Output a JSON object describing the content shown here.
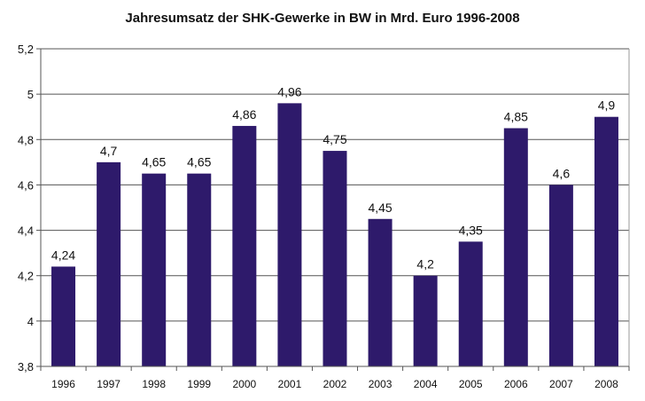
{
  "chart_data": {
    "type": "bar",
    "title": "Jahresumsatz der SHK-Gewerke in BW in Mrd. Euro 1996-2008",
    "xlabel": "",
    "ylabel": "",
    "categories": [
      "1996",
      "1997",
      "1998",
      "1999",
      "2000",
      "2001",
      "2002",
      "2003",
      "2004",
      "2005",
      "2006",
      "2007",
      "2008"
    ],
    "values": [
      4.24,
      4.7,
      4.65,
      4.65,
      4.86,
      4.96,
      4.75,
      4.45,
      4.2,
      4.35,
      4.85,
      4.6,
      4.9
    ],
    "data_labels": [
      "4,24",
      "4,7",
      "4,65",
      "4,65",
      "4,86",
      "4,96",
      "4,75",
      "4,45",
      "4,2",
      "4,35",
      "4,85",
      "4,6",
      "4,9"
    ],
    "ylim": [
      3.8,
      5.2
    ],
    "yticks": [
      3.8,
      4,
      4.2,
      4.4,
      4.6,
      4.8,
      5,
      5.2
    ],
    "ytick_labels": [
      "3,8",
      "4",
      "4,2",
      "4,4",
      "4,6",
      "4,8",
      "5",
      "5,2"
    ],
    "grid": true,
    "legend": "none",
    "bar_color": "#2e1a6b"
  }
}
